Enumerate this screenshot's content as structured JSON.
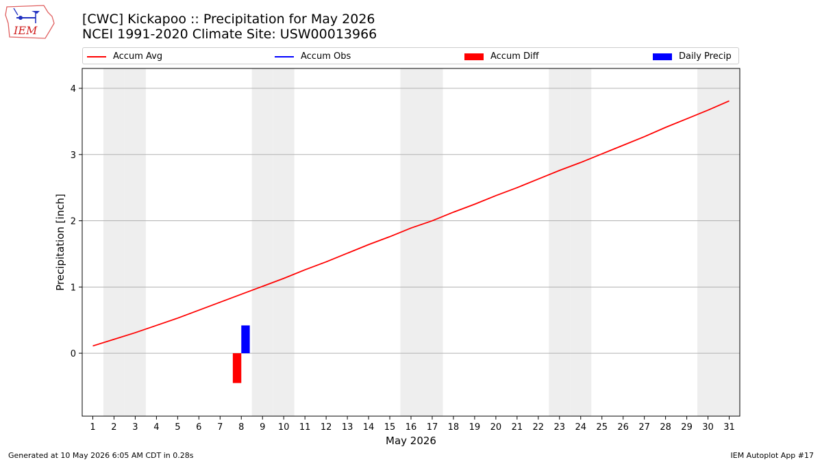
{
  "header": {
    "title_line1": "[CWC] Kickapoo :: Precipitation for May 2026",
    "title_line2": "NCEI 1991-2020 Climate Site: USW00013966",
    "logo_text": "IEM"
  },
  "legend": {
    "placement": "top",
    "items": [
      {
        "label": "Accum Avg",
        "kind": "line",
        "color": "#ff0000"
      },
      {
        "label": "Accum Obs",
        "kind": "line",
        "color": "#0000ff"
      },
      {
        "label": "Accum Diff",
        "kind": "bar",
        "color": "#ff0000"
      },
      {
        "label": "Daily Precip",
        "kind": "bar",
        "color": "#0000ff"
      }
    ]
  },
  "footer": {
    "left": "Generated at 10 May 2026 6:05 AM CDT in 0.28s",
    "right": "IEM Autoplot App #17"
  },
  "colors": {
    "weekend_band": "#eeeeee",
    "grid": "#b0b0b0"
  },
  "chart_data": {
    "type": "line",
    "xlabel": "May 2026",
    "ylabel": "Precipitation [inch]",
    "xlim": [
      0.5,
      31.5
    ],
    "ylim": [
      -0.95,
      4.3
    ],
    "x_ticks": [
      1,
      2,
      3,
      4,
      5,
      6,
      7,
      8,
      9,
      10,
      11,
      12,
      13,
      14,
      15,
      16,
      17,
      18,
      19,
      20,
      21,
      22,
      23,
      24,
      25,
      26,
      27,
      28,
      29,
      30,
      31
    ],
    "y_ticks": [
      0,
      1,
      2,
      3,
      4
    ],
    "grid": "horizontal",
    "weekend_days": [
      2,
      3,
      9,
      10,
      16,
      17,
      23,
      24,
      30,
      31
    ],
    "series": [
      {
        "name": "Accum Avg",
        "type": "line",
        "color": "#ff0000",
        "x": [
          1,
          2,
          3,
          4,
          5,
          6,
          7,
          8,
          9,
          10,
          11,
          12,
          13,
          14,
          15,
          16,
          17,
          18,
          19,
          20,
          21,
          22,
          23,
          24,
          25,
          26,
          27,
          28,
          29,
          30,
          31
        ],
        "values": [
          0.11,
          0.21,
          0.31,
          0.42,
          0.53,
          0.65,
          0.77,
          0.89,
          1.01,
          1.13,
          1.26,
          1.38,
          1.51,
          1.64,
          1.76,
          1.89,
          2.0,
          2.13,
          2.25,
          2.38,
          2.5,
          2.63,
          2.76,
          2.88,
          3.01,
          3.14,
          3.27,
          3.41,
          3.54,
          3.67,
          3.81
        ]
      },
      {
        "name": "Accum Obs",
        "type": "line",
        "color": "#0000ff",
        "x": [],
        "values": []
      },
      {
        "name": "Accum Diff",
        "type": "bar",
        "color": "#ff0000",
        "x": [
          8
        ],
        "values": [
          -0.45
        ]
      },
      {
        "name": "Daily Precip",
        "type": "bar",
        "color": "#0000ff",
        "x": [
          8
        ],
        "values": [
          0.42
        ]
      }
    ]
  }
}
